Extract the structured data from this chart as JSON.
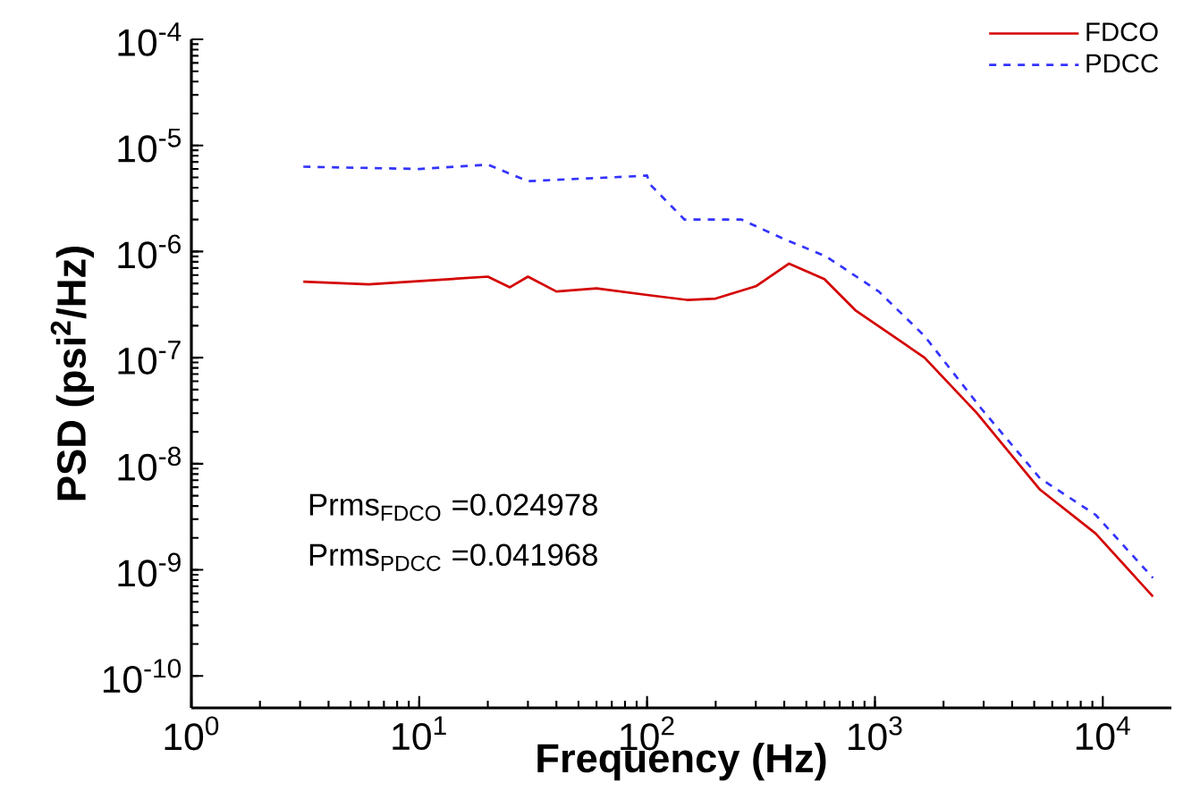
{
  "chart_data": {
    "type": "line",
    "xlabel": "Frequency (Hz)",
    "ylabel": "PSD (psi$^{2}$/Hz)",
    "log": "xy",
    "legend": "top right",
    "xlim": [
      1,
      20000
    ],
    "ylim": [
      5e-11,
      0.0001
    ],
    "xticks": [
      {
        "value": 1,
        "label": "10$^{0}$"
      },
      {
        "value": 10,
        "label": "10$^{1}$"
      },
      {
        "value": 100,
        "label": "10$^{2}$"
      },
      {
        "value": 1000,
        "label": "10$^{3}$"
      },
      {
        "value": 10000,
        "label": "10$^{4}$"
      }
    ],
    "yticks": [
      {
        "value": 1e-10,
        "label": "10$^{-10}$"
      },
      {
        "value": 1e-09,
        "label": "10$^{-9}$"
      },
      {
        "value": 1e-08,
        "label": "10$^{-8}$"
      },
      {
        "value": 1e-07,
        "label": "10$^{-7}$"
      },
      {
        "value": 1e-06,
        "label": "10$^{-6}$"
      },
      {
        "value": 1e-05,
        "label": "10$^{-5}$"
      },
      {
        "value": 0.0001,
        "label": "10$^{-4}$"
      }
    ],
    "annotations": [
      "Prms$_{FDCO}$ =0.024978",
      "Prms$_{PDCC}$ =0.041968"
    ],
    "series": [
      {
        "name": "FDCO",
        "color": "#d40000",
        "line_style": "solid",
        "x": [
          3.1,
          6,
          20,
          25,
          30,
          40,
          60,
          100,
          150,
          200,
          300,
          420,
          600,
          820,
          1650,
          2800,
          5300,
          9300,
          16600
        ],
        "values": [
          5.2e-07,
          4.9e-07,
          5.8e-07,
          4.6e-07,
          5.8e-07,
          4.2e-07,
          4.5e-07,
          3.9e-07,
          3.5e-07,
          3.6e-07,
          4.7e-07,
          7.7e-07,
          5.5e-07,
          2.8e-07,
          1e-07,
          3e-08,
          5.7e-09,
          2.2e-09,
          5.6e-10
        ]
      },
      {
        "name": "PDCC",
        "color": "#3333ff",
        "line_style": "dashed",
        "x": [
          3.1,
          10,
          20,
          30,
          45,
          70,
          100,
          103,
          146,
          260,
          390,
          610,
          1040,
          1650,
          2900,
          5300,
          9300,
          16600
        ],
        "values": [
          6.3e-06,
          6e-06,
          6.6e-06,
          4.6e-06,
          4.8e-06,
          5e-06,
          5.2e-06,
          4.3e-06,
          2e-06,
          2e-06,
          1.34e-06,
          9e-07,
          4.2e-07,
          1.6e-07,
          3.4e-08,
          7.3e-09,
          3.3e-09,
          8.4e-10
        ]
      }
    ]
  }
}
